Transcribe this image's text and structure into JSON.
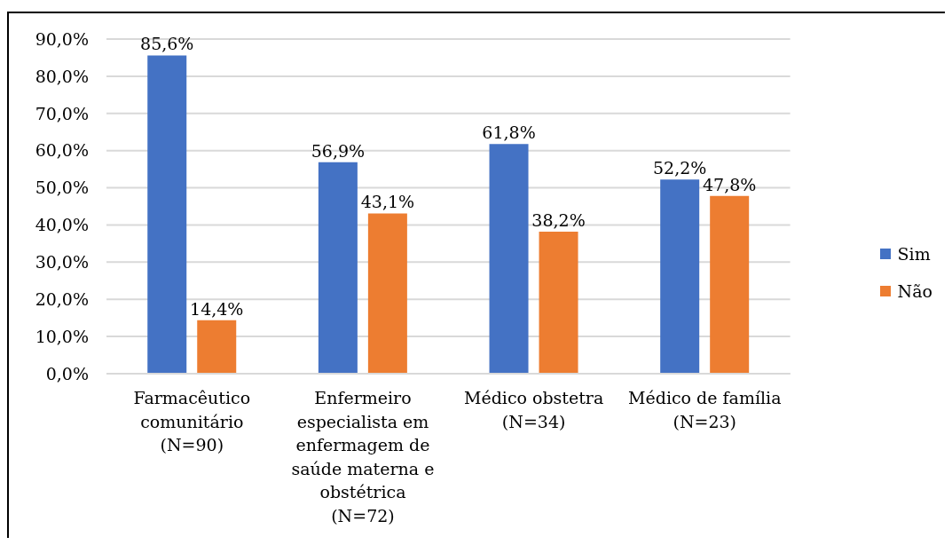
{
  "chart_data": {
    "type": "bar",
    "categories": [
      "Farmacêutico comunitário\n(N=90)",
      "Enfermeiro especialista em enfermagem de saúde materna e obstétrica\n(N=72)",
      "Médico obstetra\n(N=34)",
      "Médico de família\n(N=23)"
    ],
    "series": [
      {
        "name": "Sim",
        "color": "#4472c4",
        "values": [
          85.6,
          56.9,
          61.8,
          52.2
        ],
        "value_labels": [
          "85,6%",
          "56,9%",
          "61,8%",
          "52,2%"
        ]
      },
      {
        "name": "Não",
        "color": "#ed7d31",
        "values": [
          14.4,
          43.1,
          38.2,
          47.8
        ],
        "value_labels": [
          "14,4%",
          "43,1%",
          "38,2%",
          "47,8%"
        ]
      }
    ],
    "ylim": [
      0,
      90
    ],
    "yticks": [
      {
        "value": 0,
        "label": "0,0%"
      },
      {
        "value": 10,
        "label": "10,0%"
      },
      {
        "value": 20,
        "label": "20,0%"
      },
      {
        "value": 30,
        "label": "30,0%"
      },
      {
        "value": 40,
        "label": "40,0%"
      },
      {
        "value": 50,
        "label": "50,0%"
      },
      {
        "value": 60,
        "label": "60,0%"
      },
      {
        "value": 70,
        "label": "70,0%"
      },
      {
        "value": 80,
        "label": "80,0%"
      },
      {
        "value": 90,
        "label": "90,0%"
      }
    ],
    "grid": "y",
    "legend": "right"
  }
}
